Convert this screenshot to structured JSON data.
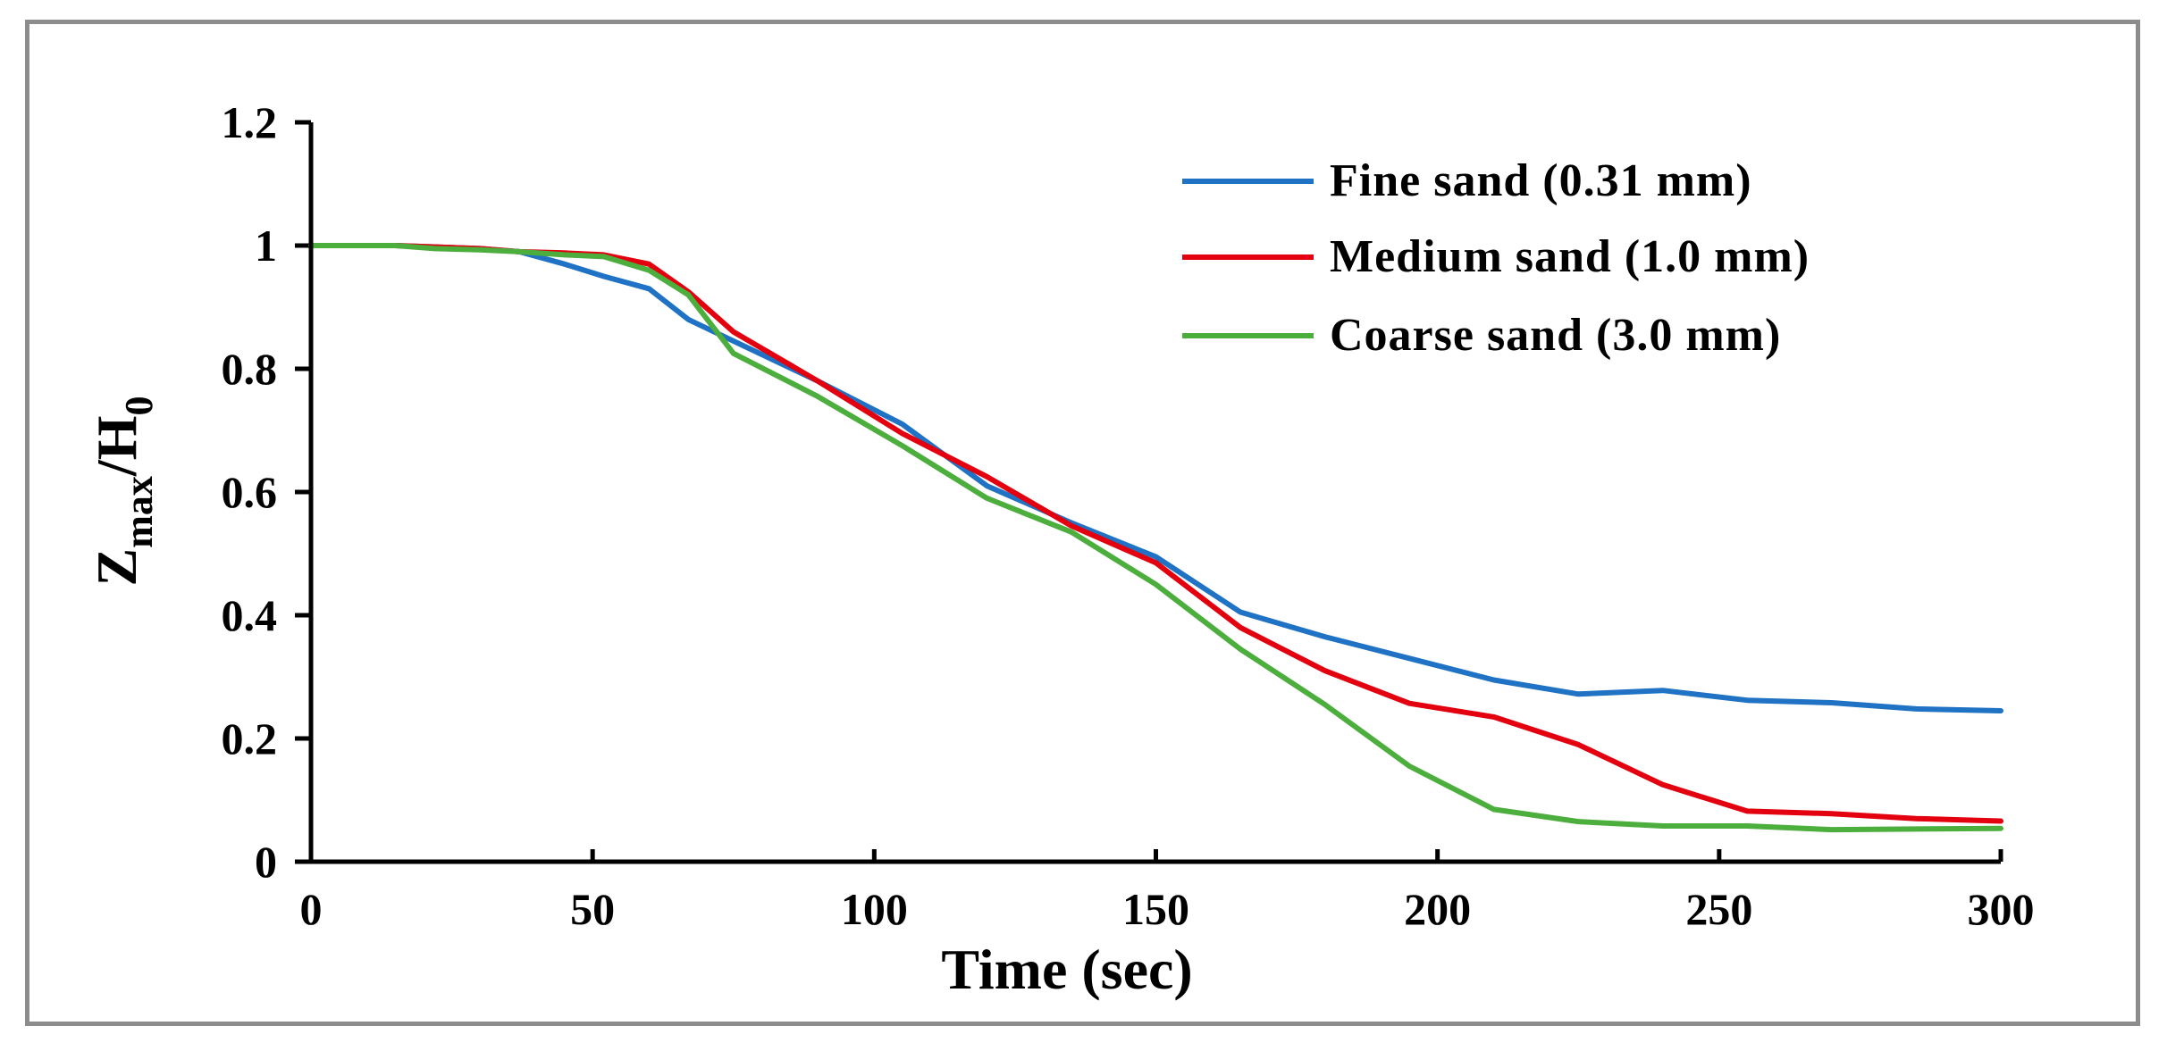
{
  "chart_data": {
    "type": "line",
    "title": "",
    "xlabel": "Time (sec)",
    "ylabel": "Zmax/H0",
    "ylabel_parts": {
      "main1": "Z",
      "sub1": "max",
      "main2": "/H",
      "sub2": "0"
    },
    "xlim": [
      0,
      300
    ],
    "ylim": [
      0,
      1.2
    ],
    "xticks": [
      0,
      50,
      100,
      150,
      200,
      250,
      300
    ],
    "xtick_labels": [
      "0",
      "50",
      "100",
      "150",
      "200",
      "250",
      "300"
    ],
    "yticks": [
      0,
      0.2,
      0.4,
      0.6,
      0.8,
      1.0,
      1.2
    ],
    "ytick_labels": [
      "0",
      "0.2",
      "0.4",
      "0.6",
      "0.8",
      "1",
      "1.2"
    ],
    "grid": false,
    "legend_position": "top-right",
    "series": [
      {
        "name": "Fine sand (0.31 mm)",
        "color": "#1f72c4",
        "x": [
          0,
          15,
          30,
          37,
          45,
          52,
          60,
          67,
          75,
          90,
          105,
          120,
          135,
          150,
          165,
          180,
          195,
          210,
          225,
          240,
          255,
          270,
          285,
          300
        ],
        "y": [
          1.0,
          1.0,
          0.995,
          0.99,
          0.97,
          0.95,
          0.93,
          0.88,
          0.845,
          0.78,
          0.71,
          0.61,
          0.55,
          0.495,
          0.405,
          0.365,
          0.33,
          0.295,
          0.272,
          0.278,
          0.262,
          0.258,
          0.248,
          0.245
        ]
      },
      {
        "name": "Medium sand (1.0 mm)",
        "color": "#e3000f",
        "x": [
          0,
          15,
          30,
          37,
          45,
          52,
          60,
          67,
          75,
          90,
          105,
          120,
          135,
          150,
          165,
          180,
          195,
          210,
          225,
          240,
          255,
          270,
          285,
          300
        ],
        "y": [
          1.0,
          1.0,
          0.995,
          0.99,
          0.988,
          0.985,
          0.97,
          0.925,
          0.86,
          0.78,
          0.695,
          0.625,
          0.545,
          0.485,
          0.38,
          0.31,
          0.257,
          0.235,
          0.19,
          0.125,
          0.082,
          0.078,
          0.07,
          0.066
        ]
      },
      {
        "name": "Coarse sand (3.0 mm)",
        "color": "#4cae3c",
        "x": [
          0,
          15,
          22,
          30,
          37,
          45,
          52,
          60,
          67,
          75,
          90,
          105,
          120,
          135,
          150,
          165,
          180,
          195,
          210,
          225,
          240,
          255,
          270,
          285,
          300
        ],
        "y": [
          1.0,
          1.0,
          0.995,
          0.993,
          0.99,
          0.985,
          0.982,
          0.96,
          0.92,
          0.825,
          0.755,
          0.675,
          0.59,
          0.535,
          0.45,
          0.345,
          0.255,
          0.155,
          0.085,
          0.065,
          0.058,
          0.058,
          0.052,
          0.053,
          0.054
        ]
      }
    ]
  }
}
